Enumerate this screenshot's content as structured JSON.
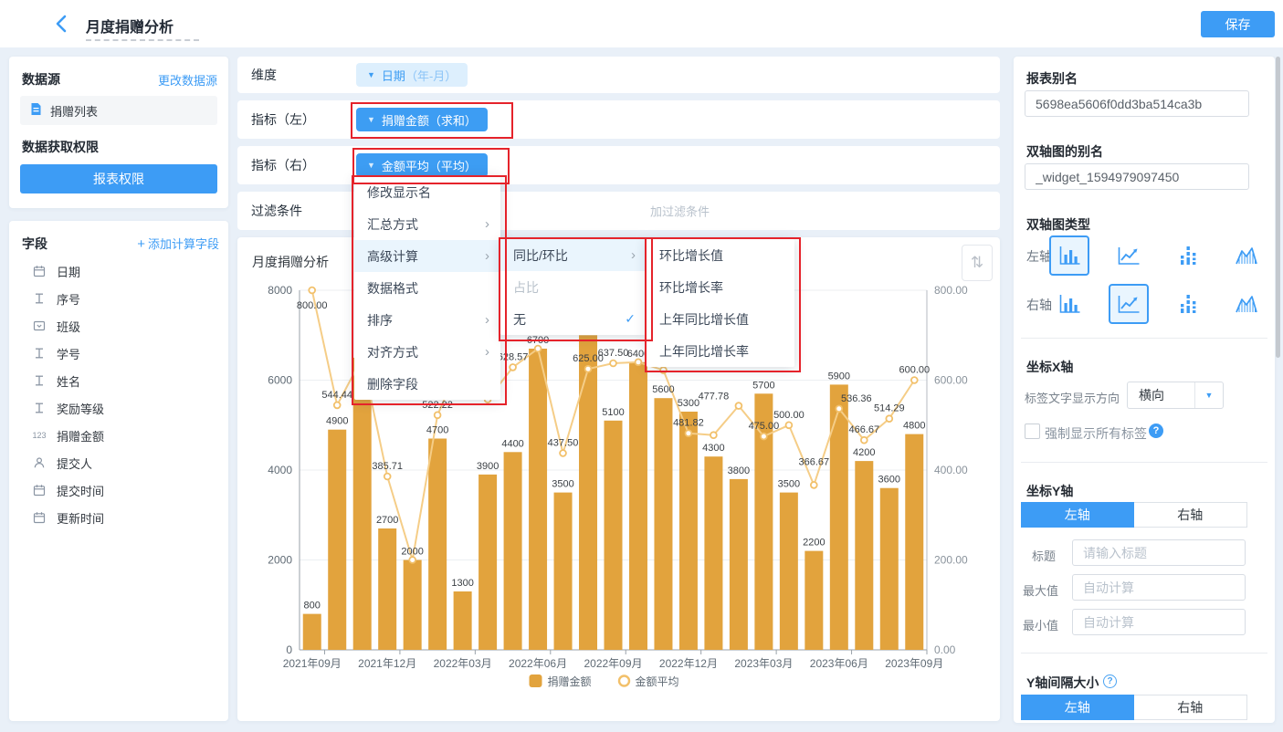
{
  "topbar": {
    "title": "月度捐赠分析",
    "save_label": "保存"
  },
  "sidebar": {
    "datasource_title": "数据源",
    "change_datasource_link": "更改数据源",
    "datasource_item": "捐赠列表",
    "permission_title": "数据获取权限",
    "permission_button": "报表权限",
    "fields_title": "字段",
    "add_field_link": "添加计算字段",
    "fields": [
      {
        "icon": "calendar-icon",
        "label": "日期"
      },
      {
        "icon": "text-icon",
        "label": "序号"
      },
      {
        "icon": "select-icon",
        "label": "班级"
      },
      {
        "icon": "text-icon",
        "label": "学号"
      },
      {
        "icon": "text-icon",
        "label": "姓名"
      },
      {
        "icon": "text-icon",
        "label": "奖励等级"
      },
      {
        "icon": "number-icon",
        "label": "捐赠金额"
      },
      {
        "icon": "person-icon",
        "label": "提交人"
      },
      {
        "icon": "calendar-icon",
        "label": "提交时间"
      },
      {
        "icon": "calendar-icon",
        "label": "更新时间"
      }
    ]
  },
  "config_rows": {
    "dimension_label": "维度",
    "dimension_pill_main": "日期",
    "dimension_pill_sub": "（年-月）",
    "metric_left_label": "指标（左）",
    "metric_left_pill": "捐赠金额（求和）",
    "metric_right_label": "指标（右）",
    "metric_right_pill": "金额平均（平均）",
    "filter_label": "过滤条件",
    "filter_placeholder_visible": "加过滤条件"
  },
  "context_menu": {
    "items": [
      {
        "label": "修改显示名",
        "submenu": false,
        "highlighted": false
      },
      {
        "label": "汇总方式",
        "submenu": true,
        "highlighted": false
      },
      {
        "label": "高级计算",
        "submenu": true,
        "highlighted": true
      },
      {
        "label": "数据格式",
        "submenu": false,
        "highlighted": false
      },
      {
        "label": "排序",
        "submenu": true,
        "highlighted": false
      },
      {
        "label": "对齐方式",
        "submenu": true,
        "highlighted": false
      },
      {
        "label": "删除字段",
        "submenu": false,
        "highlighted": false
      }
    ],
    "submenu": [
      {
        "label": "同比/环比",
        "submenu": true,
        "highlighted": true,
        "disabled": false,
        "checked": false
      },
      {
        "label": "占比",
        "submenu": false,
        "highlighted": false,
        "disabled": true,
        "checked": false
      },
      {
        "label": "无",
        "submenu": false,
        "highlighted": false,
        "disabled": false,
        "checked": true
      }
    ],
    "subsubmenu": [
      "环比增长值",
      "环比增长率",
      "上年同比增长值",
      "上年同比增长率"
    ]
  },
  "chart": {
    "title": "月度捐赠分析",
    "sort_icon": "⇅"
  },
  "chart_data": {
    "type": "bar+line dual-axis",
    "title": "月度捐赠分析",
    "categories": [
      "2021年09月",
      "2021年10月",
      "2021年11月",
      "2021年12月",
      "2022年01月",
      "2022年02月",
      "2022年03月",
      "2022年04月",
      "2022年05月",
      "2022年06月",
      "2022年07月",
      "2022年08月",
      "2022年09月",
      "2022年10月",
      "2022年11月",
      "2022年12月",
      "2023年01月",
      "2023年02月",
      "2023年03月",
      "2023年04月",
      "2023年05月",
      "2023年06月",
      "2023年07月",
      "2023年08月",
      "2023年09月"
    ],
    "x_tick_indices": [
      0,
      3,
      6,
      9,
      12,
      15,
      18,
      21,
      24
    ],
    "series": [
      {
        "name": "捐赠金额",
        "type": "bar",
        "axis": "left",
        "color": "#e2a33d",
        "values": [
          800,
          4900,
          6500,
          2700,
          2000,
          4700,
          1300,
          3900,
          4400,
          6700,
          3500,
          7000,
          5100,
          6400,
          5600,
          5300,
          4300,
          3800,
          5700,
          3500,
          2200,
          5900,
          4200,
          3600,
          4800
        ],
        "labels": [
          "800",
          "4900",
          "",
          "2700",
          "2000",
          "4700",
          "1300",
          "3900",
          "4400",
          "6700",
          "3500",
          "",
          "5100",
          "6400",
          "5600",
          "5300",
          "4300",
          "3800",
          "5700",
          "3500",
          "2200",
          "5900",
          "4200",
          "3600",
          "4800"
        ]
      },
      {
        "name": "金额平均",
        "type": "line",
        "axis": "right",
        "color": "#f5cd87",
        "values": [
          800,
          544.44,
          650,
          385.71,
          200,
          522.22,
          650,
          557.14,
          628.57,
          670,
          437.5,
          625,
          637.5,
          640,
          622.22,
          481.82,
          477.78,
          542.86,
          475,
          500,
          366.67,
          536.36,
          466.67,
          514.29,
          600
        ],
        "labels": [
          "800.00",
          "544.44",
          "",
          "385.71",
          "",
          "522.22",
          "",
          "",
          "628.57",
          "",
          "437.50",
          "625.00",
          "637.50",
          "",
          "",
          "481.82",
          "477.78",
          "",
          "475.00",
          "500.00",
          "366.67",
          "536.36",
          "466.67",
          "514.29",
          "600.00"
        ],
        "label_dx": [
          0,
          0,
          0,
          0,
          0,
          0,
          0,
          0,
          0,
          0,
          0,
          0,
          0,
          0,
          0,
          0,
          0,
          0,
          0,
          0,
          0,
          19,
          0,
          0,
          0
        ],
        "label_dy": [
          28,
          0,
          0,
          0,
          0,
          0,
          0,
          0,
          0,
          0,
          0,
          0,
          0,
          0,
          0,
          0,
          -31,
          0,
          0,
          0,
          -14,
          0,
          0,
          0,
          0
        ]
      }
    ],
    "left_axis": {
      "min": 0,
      "max": 8000,
      "ticks": [
        0,
        2000,
        4000,
        6000,
        8000
      ],
      "tick_labels": [
        "0",
        "2000",
        "4000",
        "6000",
        "8000"
      ]
    },
    "right_axis": {
      "min": 0,
      "max": 800,
      "ticks": [
        0,
        200,
        400,
        600,
        800
      ],
      "tick_labels": [
        "0.00",
        "200.00",
        "400.00",
        "600.00",
        "800.00"
      ]
    },
    "legend": [
      {
        "name": "捐赠金额",
        "marker": "square"
      },
      {
        "name": "金额平均",
        "marker": "ring"
      }
    ],
    "grid": true,
    "legend_position": "bottom"
  },
  "panel": {
    "report_alias_label": "报表别名",
    "report_alias_value": "5698ea5606f0dd3ba514ca3b",
    "widget_alias_label": "双轴图的别名",
    "widget_alias_value": "_widget_1594979097450",
    "axis_type_label": "双轴图类型",
    "axis_icons": [
      "bar-chart",
      "line-chart",
      "stacked-bar",
      "area-chart"
    ],
    "axis_rows": [
      {
        "label": "左轴",
        "selected": 0
      },
      {
        "label": "右轴",
        "selected": 1
      }
    ],
    "x_axis_label": "坐标X轴",
    "label_direction_label": "标签文字显示方向",
    "label_direction_value": "横向",
    "force_labels_label": "强制显示所有标签",
    "y_axis_label": "坐标Y轴",
    "toggle_left": "左轴",
    "toggle_right": "右轴",
    "title_label": "标题",
    "title_placeholder": "请输入标题",
    "max_label": "最大值",
    "min_label": "最小值",
    "auto_placeholder": "自动计算",
    "y_interval_label": "Y轴间隔大小"
  },
  "colors": {
    "accent": "#3d9cf5",
    "bar": "#e2a33d",
    "line": "#f5cd87",
    "annotation_red": "#e5232b"
  }
}
